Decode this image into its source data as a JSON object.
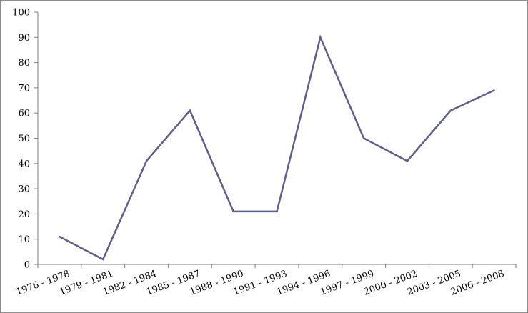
{
  "chart_data": {
    "type": "line",
    "title": "",
    "xlabel": "",
    "ylabel": "",
    "categories": [
      "1976 - 1978",
      "1979 - 1981",
      "1982 - 1984",
      "1985 - 1987",
      "1988 - 1990",
      "1991 - 1993",
      "1994 - 1996",
      "1997 - 1999",
      "2000 - 2002",
      "2003 - 2005",
      "2006 - 2008"
    ],
    "series": [
      {
        "values": [
          11,
          2,
          41,
          61,
          21,
          21,
          90,
          50,
          41,
          61,
          69
        ]
      }
    ],
    "ylim": [
      0,
      100
    ],
    "yticks": [
      0,
      10,
      20,
      30,
      40,
      50,
      60,
      70,
      80,
      90,
      100
    ],
    "grid": false,
    "legend": "none",
    "colors": {
      "line": "#5f5c8f",
      "axis": "#7f7f7f",
      "frame": "#8c8c8c"
    }
  }
}
